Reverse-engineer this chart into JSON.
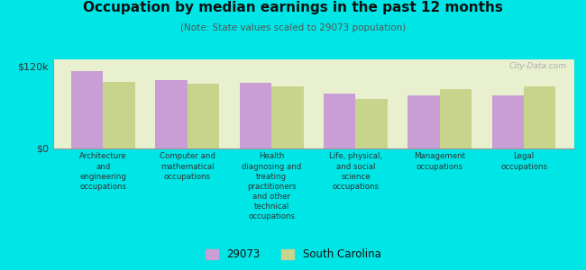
{
  "title": "Occupation by median earnings in the past 12 months",
  "subtitle": "(Note: State values scaled to 29073 population)",
  "categories": [
    "Architecture\nand\nengineering\noccupations",
    "Computer and\nmathematical\noccupations",
    "Health\ndiagnosing and\ntreating\npractitioners\nand other\ntechnical\noccupations",
    "Life, physical,\nand social\nscience\noccupations",
    "Management\noccupations",
    "Legal\noccupations"
  ],
  "values_29073": [
    113000,
    100000,
    96000,
    80000,
    77000,
    78000
  ],
  "values_south_carolina": [
    97000,
    95000,
    90000,
    72000,
    87000,
    91000
  ],
  "color_29073": "#c89ed4",
  "color_sc": "#c8d48c",
  "ylim": [
    0,
    130000
  ],
  "yticks": [
    0,
    120000
  ],
  "ytick_labels": [
    "$0",
    "$120k"
  ],
  "background_color": "#e8f0d0",
  "outer_background": "#00e5e5",
  "legend_label_1": "29073",
  "legend_label_2": "South Carolina",
  "watermark": "City-Data.com"
}
